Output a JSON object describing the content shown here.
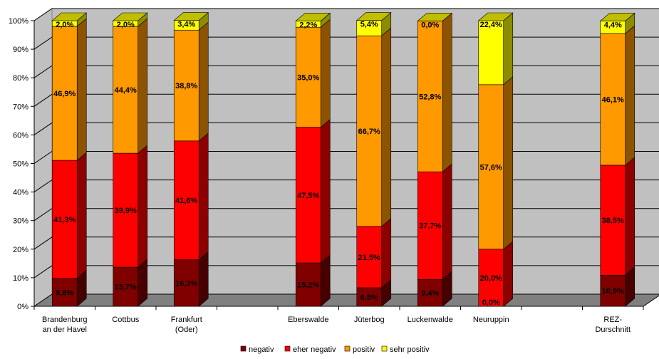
{
  "chart_data": {
    "type": "bar",
    "stacked": true,
    "percent_axis": true,
    "categories": [
      [
        "Brandenburg",
        "an der Havel"
      ],
      [
        "Cottbus"
      ],
      [
        "Frankfurt",
        "(Oder)"
      ],
      [
        ""
      ],
      [
        "Eberswalde"
      ],
      [
        "Jüterbog"
      ],
      [
        "Luckenwalde"
      ],
      [
        "Neuruppin"
      ],
      [
        ""
      ],
      [
        "REZ-",
        "Durschnitt"
      ]
    ],
    "series": [
      {
        "name": "negativ",
        "color": "#800000",
        "values": [
          9.8,
          13.7,
          16.3,
          null,
          15.2,
          6.5,
          9.4,
          0.0,
          null,
          10.9
        ]
      },
      {
        "name": "eher negativ",
        "color": "#ff0000",
        "values": [
          41.3,
          39.9,
          41.6,
          null,
          47.5,
          21.5,
          37.7,
          20.0,
          null,
          38.5
        ]
      },
      {
        "name": "positiv",
        "color": "#ff9900",
        "values": [
          46.9,
          44.4,
          38.8,
          null,
          35.0,
          66.7,
          52.8,
          57.6,
          null,
          46.1
        ]
      },
      {
        "name": "sehr positiv",
        "color": "#ffff00",
        "values": [
          2.0,
          2.0,
          3.4,
          null,
          2.2,
          5.4,
          0.0,
          22.4,
          null,
          4.4
        ]
      }
    ],
    "data_labels": [
      [
        "9,8%",
        "41,3%",
        "46,9%",
        "2,0%"
      ],
      [
        "13,7%",
        "39,9%",
        "44,4%",
        "2,0%"
      ],
      [
        "16,3%",
        "41,6%",
        "38,8%",
        "3,4%"
      ],
      [],
      [
        "15,2%",
        "47,5%",
        "35,0%",
        "2,2%"
      ],
      [
        "6,5%",
        "21,5%",
        "66,7%",
        "5,4%"
      ],
      [
        "9,4%",
        "37,7%",
        "52,8%",
        "0,0%"
      ],
      [
        "0,0%",
        "20,0%",
        "57,6%",
        "22,4%"
      ],
      [],
      [
        "10,9%",
        "38,5%",
        "46,1%",
        "4,4%"
      ]
    ],
    "y_ticks": [
      "0%",
      "10%",
      "20%",
      "30%",
      "40%",
      "50%",
      "60%",
      "70%",
      "80%",
      "90%",
      "100%"
    ],
    "ylim": [
      0,
      100
    ],
    "grid": true,
    "legend_position": "bottom",
    "wall_color": "#c0c0c0",
    "floor_color": "#808080"
  }
}
